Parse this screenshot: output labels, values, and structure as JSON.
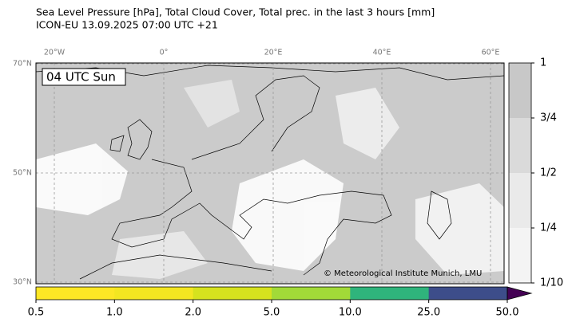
{
  "header": {
    "line1": "Sea Level Pressure [hPa], Total Cloud Cover, Total prec. in the last 3 hours [mm]",
    "line2": "ICON-EU 13.09.2025 07:00 UTC +21"
  },
  "map": {
    "time_label": "04 UTC Sun",
    "credit": "© Meteorological Institute Munich, LMU",
    "longitude_labels": [
      "20°W",
      "0°",
      "20°E",
      "40°E",
      "60°E"
    ],
    "latitude_labels": [
      "70°N",
      "50°N",
      "30°N"
    ]
  },
  "cloud_colorbar": {
    "labels": [
      "1/10",
      "1/4",
      "1/2",
      "3/4",
      "1"
    ],
    "colors": [
      "#f4f4f4",
      "#eaeaea",
      "#dadada",
      "#c8c8c8"
    ]
  },
  "precip_colorbar": {
    "labels": [
      "0.5",
      "1.0",
      "2.0",
      "5.0",
      "10.0",
      "25.0",
      "50.0"
    ],
    "colors": [
      "#fde725",
      "#f3e621",
      "#d6e21e",
      "#a2da38",
      "#2fb47c",
      "#3d4d8a"
    ],
    "extend_color": "#440154"
  }
}
